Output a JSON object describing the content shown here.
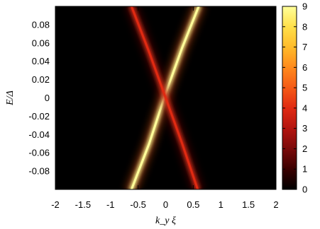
{
  "chart_data": {
    "type": "heatmap",
    "title": "",
    "xlabel": "k_y ξ",
    "ylabel": "E/Δ",
    "xlim": [
      -2,
      2
    ],
    "ylim": [
      -0.1,
      0.1
    ],
    "xticks": [
      "-2",
      "-1.5",
      "-1",
      "-0.5",
      "0",
      "0.5",
      "1",
      "1.5",
      "2"
    ],
    "xtick_values": [
      -2,
      -1.5,
      -1,
      -0.5,
      0,
      0.5,
      1,
      1.5,
      2
    ],
    "yticks": [
      "0.08",
      "0.06",
      "0.04",
      "0.02",
      "0",
      "-0.02",
      "-0.04",
      "-0.06",
      "-0.08"
    ],
    "ytick_values": [
      0.08,
      0.06,
      0.04,
      0.02,
      0,
      -0.02,
      -0.04,
      -0.06,
      -0.08
    ],
    "colorbar": {
      "min": 0,
      "max": 9,
      "ticks": [
        "9",
        "8",
        "7",
        "6",
        "5",
        "4",
        "3",
        "2",
        "1",
        "0"
      ],
      "tick_values": [
        9,
        8,
        7,
        6,
        5,
        4,
        3,
        2,
        1,
        0
      ],
      "colormap": [
        "#000000",
        "#3a0000",
        "#7a0a0a",
        "#b3140f",
        "#e02a12",
        "#f55a16",
        "#ff8a1c",
        "#ffbb2a",
        "#ffe04a",
        "#ffff9a"
      ]
    },
    "background_color": "#000000",
    "series": [
      {
        "x": [
          -0.62,
          -0.3,
          0,
          0.3,
          0.6
        ],
        "y": [
          -0.1,
          -0.05,
          0.005,
          0.055,
          0.1
        ],
        "intensity": 9
      },
      {
        "x": [
          0.58,
          0.3,
          0,
          -0.3,
          -0.62
        ],
        "y": [
          -0.1,
          -0.05,
          0.0,
          0.05,
          0.1
        ],
        "intensity": 4
      }
    ]
  }
}
